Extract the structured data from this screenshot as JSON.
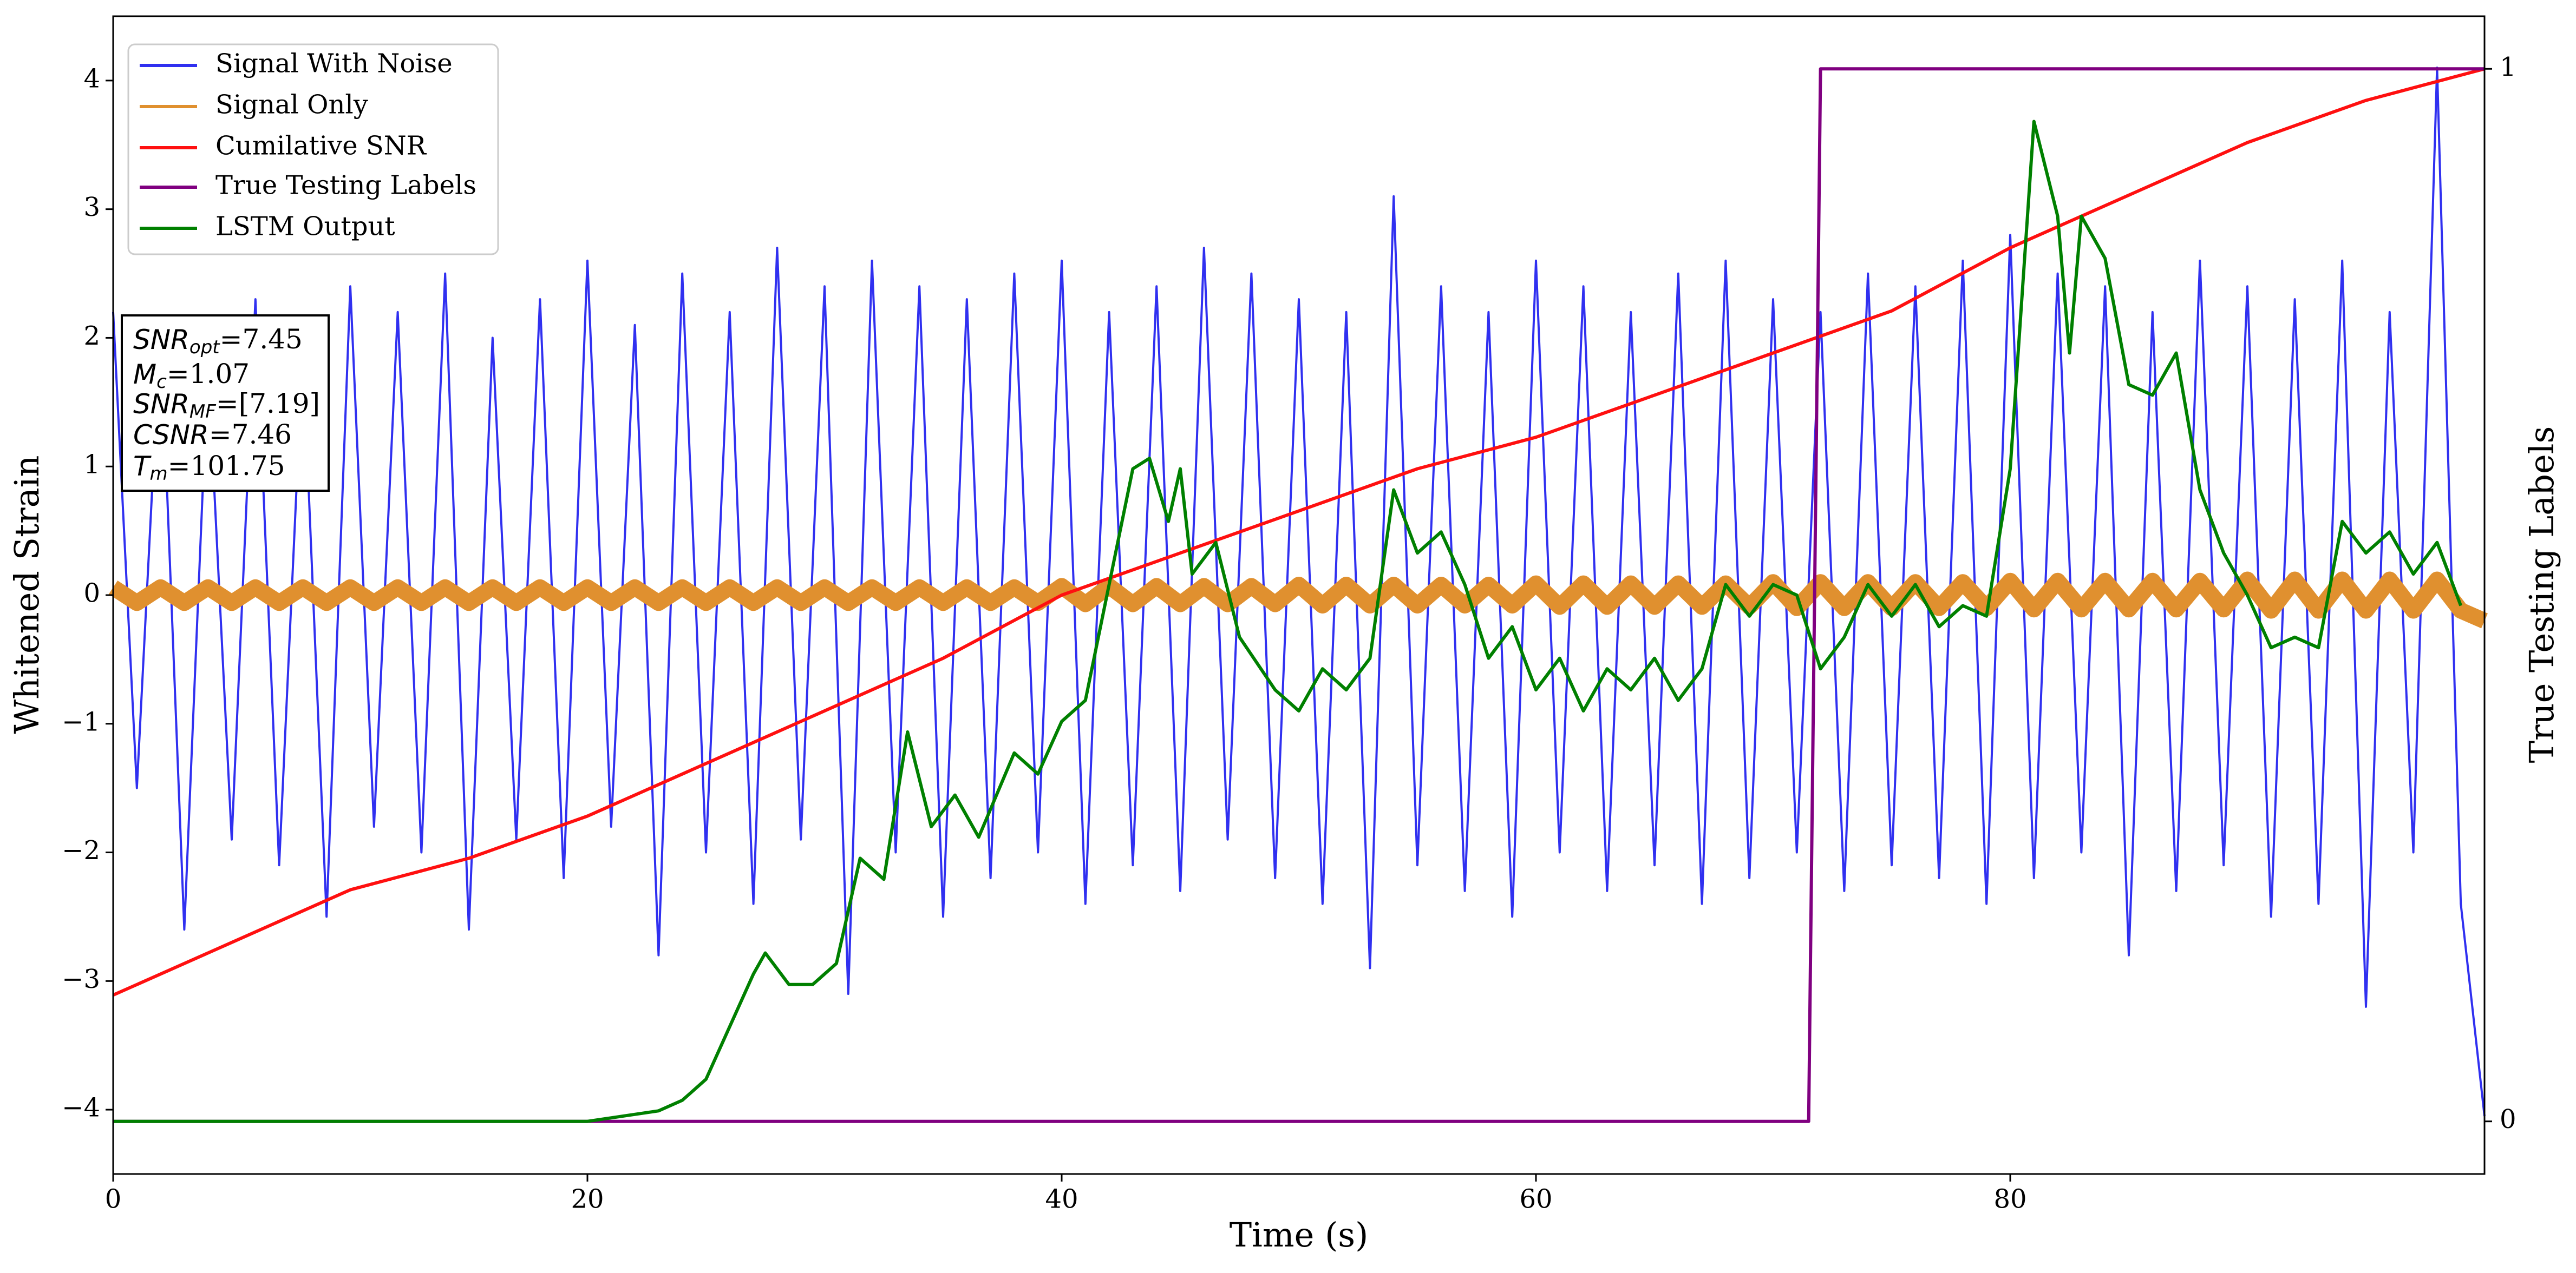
{
  "chart_data": {
    "type": "line",
    "xlabel": "Time (s)",
    "ylabel": "Whitened Strain",
    "y2label": "True Testing Labels",
    "xlim": [
      0,
      100
    ],
    "xticks": [
      0,
      20,
      40,
      60,
      80
    ],
    "ylim": [
      -4.5,
      4.5
    ],
    "yticks": [
      {
        "value": -4,
        "label": "−4"
      },
      {
        "value": -3,
        "label": "−3"
      },
      {
        "value": -2,
        "label": "−2"
      },
      {
        "value": -1,
        "label": "−1"
      },
      0,
      1,
      2,
      3,
      4
    ],
    "y2lim": [
      -0.05,
      1.05
    ],
    "y2ticks": [
      0,
      1
    ],
    "legend": "upper left",
    "annotation_lines": [
      [
        "SNR",
        "opt",
        "=7.45"
      ],
      [
        "M",
        "c",
        "=1.07"
      ],
      [
        "SNR",
        "MF",
        "=[7.19]"
      ],
      [
        "CSNR",
        "",
        "=7.46"
      ],
      [
        "T",
        "m",
        "=101.75"
      ]
    ],
    "series": [
      {
        "name": "Signal With Noise",
        "color": "#3030f0",
        "x": [
          0,
          1,
          2,
          3,
          4,
          5,
          6,
          7,
          8,
          9,
          10,
          11,
          12,
          13,
          14,
          15,
          16,
          17,
          18,
          19,
          20,
          21,
          22,
          23,
          24,
          25,
          26,
          27,
          28,
          29,
          30,
          31,
          32,
          33,
          34,
          35,
          36,
          37,
          38,
          39,
          40,
          41,
          42,
          43,
          44,
          45,
          46,
          47,
          48,
          49,
          50,
          51,
          52,
          53,
          54,
          55,
          56,
          57,
          58,
          59,
          60,
          61,
          62,
          63,
          64,
          65,
          66,
          67,
          68,
          69,
          70,
          71,
          72,
          73,
          74,
          75,
          76,
          77,
          78,
          79,
          80,
          81,
          82,
          83,
          84,
          85,
          86,
          87,
          88,
          89,
          90,
          91,
          92,
          93,
          94,
          95,
          96,
          97,
          98,
          99,
          100
        ],
        "values": [
          2.2,
          -1.5,
          2.1,
          -2.6,
          1.8,
          -1.9,
          2.3,
          -2.1,
          1.9,
          -2.5,
          2.4,
          -1.8,
          2.2,
          -2.0,
          2.5,
          -2.6,
          2.0,
          -1.9,
          2.3,
          -2.2,
          2.6,
          -1.8,
          2.1,
          -2.8,
          2.5,
          -2.0,
          2.2,
          -2.4,
          2.7,
          -1.9,
          2.4,
          -3.1,
          2.6,
          -2.0,
          2.4,
          -2.5,
          2.3,
          -2.2,
          2.5,
          -2.0,
          2.6,
          -2.4,
          2.2,
          -2.1,
          2.4,
          -2.3,
          2.7,
          -1.9,
          2.5,
          -2.2,
          2.3,
          -2.4,
          2.2,
          -2.9,
          3.1,
          -2.1,
          2.4,
          -2.3,
          2.2,
          -2.5,
          2.6,
          -2.0,
          2.4,
          -2.3,
          2.2,
          -2.1,
          2.5,
          -2.4,
          2.6,
          -2.2,
          2.3,
          -2.0,
          2.2,
          -2.3,
          2.5,
          -2.1,
          2.4,
          -2.2,
          2.6,
          -2.4,
          2.8,
          -2.2,
          2.5,
          -2.0,
          2.4,
          -2.8,
          2.2,
          -2.3,
          2.6,
          -2.1,
          2.4,
          -2.5,
          2.3,
          -2.4,
          2.6,
          -3.2,
          2.2,
          -2.0,
          4.1,
          -2.4,
          -4.05
        ]
      },
      {
        "name": "Signal Only",
        "color": "#e0902f",
        "x": [
          0,
          1,
          2,
          3,
          4,
          5,
          6,
          7,
          8,
          9,
          10,
          11,
          12,
          13,
          14,
          15,
          16,
          17,
          18,
          19,
          20,
          21,
          22,
          23,
          24,
          25,
          26,
          27,
          28,
          29,
          30,
          31,
          32,
          33,
          34,
          35,
          36,
          37,
          38,
          39,
          40,
          41,
          42,
          43,
          44,
          45,
          46,
          47,
          48,
          49,
          50,
          51,
          52,
          53,
          54,
          55,
          56,
          57,
          58,
          59,
          60,
          61,
          62,
          63,
          64,
          65,
          66,
          67,
          68,
          69,
          70,
          71,
          72,
          73,
          74,
          75,
          76,
          77,
          78,
          79,
          80,
          81,
          82,
          83,
          84,
          85,
          86,
          87,
          88,
          89,
          90,
          91,
          92,
          93,
          94,
          95,
          96,
          97,
          98,
          99,
          100
        ],
        "values": [
          0.06,
          -0.06,
          0.06,
          -0.06,
          0.06,
          -0.06,
          0.06,
          -0.06,
          0.06,
          -0.06,
          0.06,
          -0.06,
          0.06,
          -0.06,
          0.06,
          -0.06,
          0.06,
          -0.06,
          0.06,
          -0.06,
          0.06,
          -0.06,
          0.06,
          -0.06,
          0.06,
          -0.06,
          0.06,
          -0.06,
          0.06,
          -0.06,
          0.06,
          -0.06,
          0.06,
          -0.06,
          0.06,
          -0.06,
          0.06,
          -0.06,
          0.06,
          -0.06,
          0.07,
          -0.07,
          0.07,
          -0.07,
          0.07,
          -0.07,
          0.07,
          -0.07,
          0.07,
          -0.07,
          0.08,
          -0.08,
          0.08,
          -0.08,
          0.08,
          -0.08,
          0.08,
          -0.08,
          0.08,
          -0.08,
          0.09,
          -0.09,
          0.09,
          -0.09,
          0.09,
          -0.09,
          0.09,
          -0.09,
          0.09,
          -0.09,
          0.1,
          -0.1,
          0.1,
          -0.1,
          0.1,
          -0.1,
          0.1,
          -0.1,
          0.1,
          -0.1,
          0.11,
          -0.11,
          0.11,
          -0.11,
          0.11,
          -0.11,
          0.11,
          -0.11,
          0.11,
          -0.11,
          0.12,
          -0.12,
          0.12,
          -0.12,
          0.12,
          -0.12,
          0.12,
          -0.12,
          0.12,
          -0.12,
          -0.2
        ]
      },
      {
        "name": "Cumilative SNR",
        "color": "#ff1010",
        "axis": "y2",
        "x": [
          0,
          5,
          10,
          15,
          20,
          25,
          30,
          35,
          40,
          45,
          50,
          55,
          60,
          65,
          70,
          75,
          80,
          85,
          90,
          95,
          100
        ],
        "values": [
          0.12,
          0.17,
          0.22,
          0.25,
          0.29,
          0.34,
          0.39,
          0.44,
          0.5,
          0.54,
          0.58,
          0.62,
          0.65,
          0.69,
          0.73,
          0.77,
          0.83,
          0.88,
          0.93,
          0.97,
          1.0
        ]
      },
      {
        "name": "True Testing Labels",
        "color": "#800080",
        "axis": "y2",
        "x": [
          0,
          71.5,
          72,
          100
        ],
        "values": [
          0,
          0,
          1,
          1
        ]
      },
      {
        "name": "LSTM Output",
        "color": "#008000",
        "axis": "y2",
        "x": [
          0,
          10,
          15,
          20,
          23,
          24,
          25,
          26,
          27,
          27.5,
          28.5,
          29.5,
          30.5,
          31.5,
          32.5,
          33.5,
          34.5,
          35.5,
          36.5,
          38,
          39,
          40,
          41,
          42,
          43,
          43.7,
          44.5,
          45,
          45.5,
          46.5,
          47.5,
          49,
          50,
          51,
          52,
          53,
          54,
          55,
          56,
          57,
          58,
          59,
          60,
          61,
          62,
          63,
          64,
          65,
          66,
          67,
          68,
          69,
          70,
          71,
          72,
          73,
          74,
          75,
          76,
          77,
          78,
          79,
          80,
          81,
          82,
          82.5,
          83,
          84,
          85,
          86,
          87,
          88,
          89,
          90,
          91,
          92,
          93,
          94,
          95,
          96,
          97,
          98,
          99
        ],
        "values": [
          0.0,
          0.0,
          0.0,
          0.0,
          0.01,
          0.02,
          0.04,
          0.09,
          0.14,
          0.16,
          0.13,
          0.13,
          0.15,
          0.25,
          0.23,
          0.37,
          0.28,
          0.31,
          0.27,
          0.35,
          0.33,
          0.38,
          0.4,
          0.51,
          0.62,
          0.63,
          0.57,
          0.62,
          0.52,
          0.55,
          0.46,
          0.41,
          0.39,
          0.43,
          0.41,
          0.44,
          0.6,
          0.54,
          0.56,
          0.51,
          0.44,
          0.47,
          0.41,
          0.44,
          0.39,
          0.43,
          0.41,
          0.44,
          0.4,
          0.43,
          0.51,
          0.48,
          0.51,
          0.5,
          0.43,
          0.46,
          0.51,
          0.48,
          0.51,
          0.47,
          0.49,
          0.48,
          0.62,
          0.95,
          0.86,
          0.73,
          0.86,
          0.82,
          0.7,
          0.69,
          0.73,
          0.6,
          0.54,
          0.5,
          0.45,
          0.46,
          0.45,
          0.57,
          0.54,
          0.56,
          0.52,
          0.55,
          0.49
        ]
      }
    ]
  }
}
